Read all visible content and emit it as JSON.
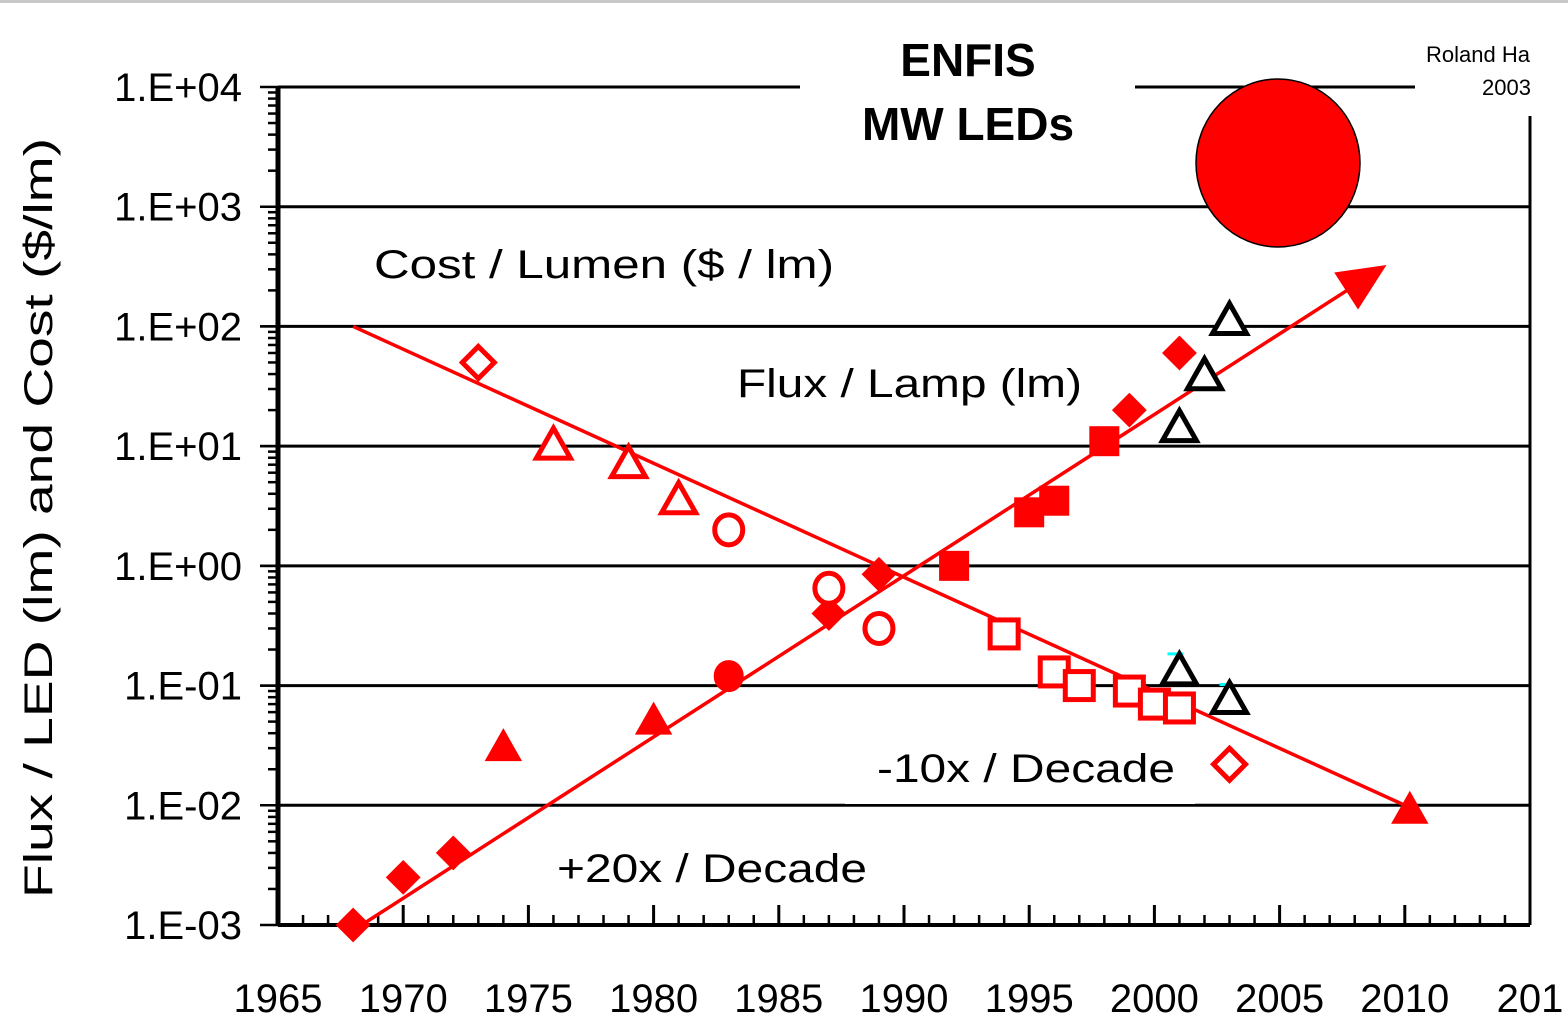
{
  "chart_data": {
    "type": "scatter",
    "title_lines": [
      "ENFIS",
      "MW LEDs"
    ],
    "ylabel": "Flux / LED   (lm) and Cost  ($/lm)",
    "xlabel": "",
    "x_ticks": [
      "1965",
      "1970",
      "1975",
      "1980",
      "1985",
      "1990",
      "1995",
      "2000",
      "2005",
      "2010",
      "201"
    ],
    "y_ticks": [
      "1.E-03",
      "1.E-02",
      "1.E-01",
      "1.E+00",
      "1.E+01",
      "1.E+02",
      "1.E+03",
      "1.E+04"
    ],
    "xlim": [
      1965,
      2015
    ],
    "ylim": [
      0.001,
      10000
    ],
    "y_scale": "log",
    "grid": "horizontal",
    "credit": [
      "Roland Ha",
      "2003"
    ],
    "annotations": {
      "cost_label": "Cost / Lumen  ($ / lm)",
      "flux_label": "Flux / Lamp (lm)",
      "cost_rate": "-10x / Decade",
      "flux_rate": "+20x / Decade"
    },
    "colors": {
      "series": "#ff0000",
      "black_marker": "#000000",
      "highlight_ellipse": "#ff0000",
      "cyan_accent": "#00ffff"
    },
    "series": [
      {
        "label": "flux-diamonds-filled",
        "marker": "diamond",
        "filled": true,
        "color": "#ff0000",
        "points": [
          [
            1968,
            0.001
          ],
          [
            1970,
            0.0025
          ],
          [
            1972,
            0.004
          ],
          [
            1987,
            0.4
          ],
          [
            1989,
            0.85
          ],
          [
            1999,
            20
          ],
          [
            2001,
            60
          ]
        ]
      },
      {
        "label": "flux-triangles-filled",
        "marker": "triangle",
        "filled": true,
        "color": "#ff0000",
        "points": [
          [
            1974,
            0.03
          ],
          [
            1980,
            0.05
          ],
          [
            2010.2,
            0.009
          ]
        ]
      },
      {
        "label": "flux-circles-filled",
        "marker": "circle",
        "filled": true,
        "color": "#ff0000",
        "points": [
          [
            1983,
            0.12
          ]
        ]
      },
      {
        "label": "flux-squares-filled",
        "marker": "square",
        "filled": true,
        "color": "#ff0000",
        "points": [
          [
            1992,
            1.0
          ],
          [
            1995,
            2.8
          ],
          [
            1996,
            3.5
          ],
          [
            1998,
            11
          ]
        ]
      },
      {
        "label": "cost-diamonds-open",
        "marker": "diamond",
        "filled": false,
        "color": "#ff0000",
        "points": [
          [
            1973,
            50
          ],
          [
            2003,
            0.022
          ]
        ]
      },
      {
        "label": "cost-triangles-open",
        "marker": "triangle",
        "filled": false,
        "color": "#ff0000",
        "points": [
          [
            1976,
            10
          ],
          [
            1979,
            7
          ],
          [
            1981,
            3.5
          ]
        ]
      },
      {
        "label": "cost-circles-open",
        "marker": "circle",
        "filled": false,
        "color": "#ff0000",
        "points": [
          [
            1983,
            2
          ],
          [
            1987,
            0.65
          ],
          [
            1989,
            0.3
          ]
        ]
      },
      {
        "label": "cost-squares-open",
        "marker": "square",
        "filled": false,
        "color": "#ff0000",
        "points": [
          [
            1994,
            0.27
          ],
          [
            1996,
            0.13
          ],
          [
            1997,
            0.1
          ],
          [
            1999,
            0.09
          ],
          [
            2000,
            0.07
          ],
          [
            2001,
            0.065
          ]
        ]
      },
      {
        "label": "black-triangles-open",
        "marker": "triangle",
        "filled": false,
        "color": "#000000",
        "points": [
          [
            2003,
            110
          ],
          [
            2002,
            38
          ],
          [
            2001,
            14
          ],
          [
            2001,
            0.13
          ],
          [
            2003,
            0.075
          ]
        ]
      }
    ],
    "trend_lines": [
      {
        "label": "cost-trend",
        "from": [
          1968,
          100
        ],
        "to": [
          2010,
          0.01
        ],
        "arrow": false
      },
      {
        "label": "flux-trend",
        "from": [
          1968,
          0.0009
        ],
        "to": [
          2009,
          300
        ],
        "arrow": true
      }
    ]
  }
}
